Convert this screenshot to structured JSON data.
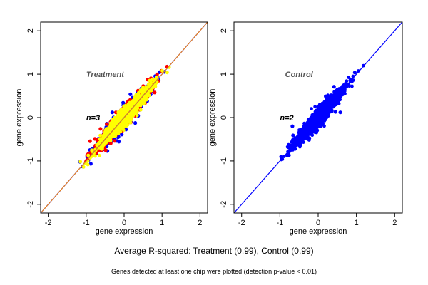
{
  "subtitle": "Average R-squared: Treatment (0.99), Control (0.99)",
  "footnote": "Genes detected at least one chip were plotted (detection p-value < 0.01)",
  "chart_data": [
    {
      "type": "scatter",
      "panel_label": "Treatment",
      "n_label": "n=3",
      "xlabel": "gene expression",
      "ylabel": "gene expression",
      "xlim": [
        -2.2,
        2.2
      ],
      "ylim": [
        -2.2,
        2.2
      ],
      "xticks": [
        -2,
        -1,
        0,
        1,
        2
      ],
      "yticks": [
        -2,
        -1,
        0,
        1,
        2
      ],
      "series_colors": [
        "#0000ff",
        "#ff0000",
        "#ffff00"
      ],
      "reference_line": {
        "slope": 1,
        "intercept": 0,
        "colors": [
          "#0000ff",
          "#ff8c00"
        ]
      },
      "point_cloud": {
        "x_range": [
          -1.1,
          1.2
        ],
        "center": [
          0,
          0
        ]
      }
    },
    {
      "type": "scatter",
      "panel_label": "Control",
      "n_label": "n=2",
      "xlabel": "gene expression",
      "ylabel": "gene expression",
      "xlim": [
        -2.2,
        2.2
      ],
      "ylim": [
        -2.2,
        2.2
      ],
      "xticks": [
        -2,
        -1,
        0,
        1,
        2
      ],
      "yticks": [
        -2,
        -1,
        0,
        1,
        2
      ],
      "series_colors": [
        "#0000ff"
      ],
      "reference_line": {
        "slope": 1,
        "intercept": 0,
        "colors": [
          "#0000ff"
        ]
      },
      "point_cloud": {
        "x_range": [
          -1.1,
          1.2
        ],
        "center": [
          0,
          0
        ]
      }
    }
  ]
}
